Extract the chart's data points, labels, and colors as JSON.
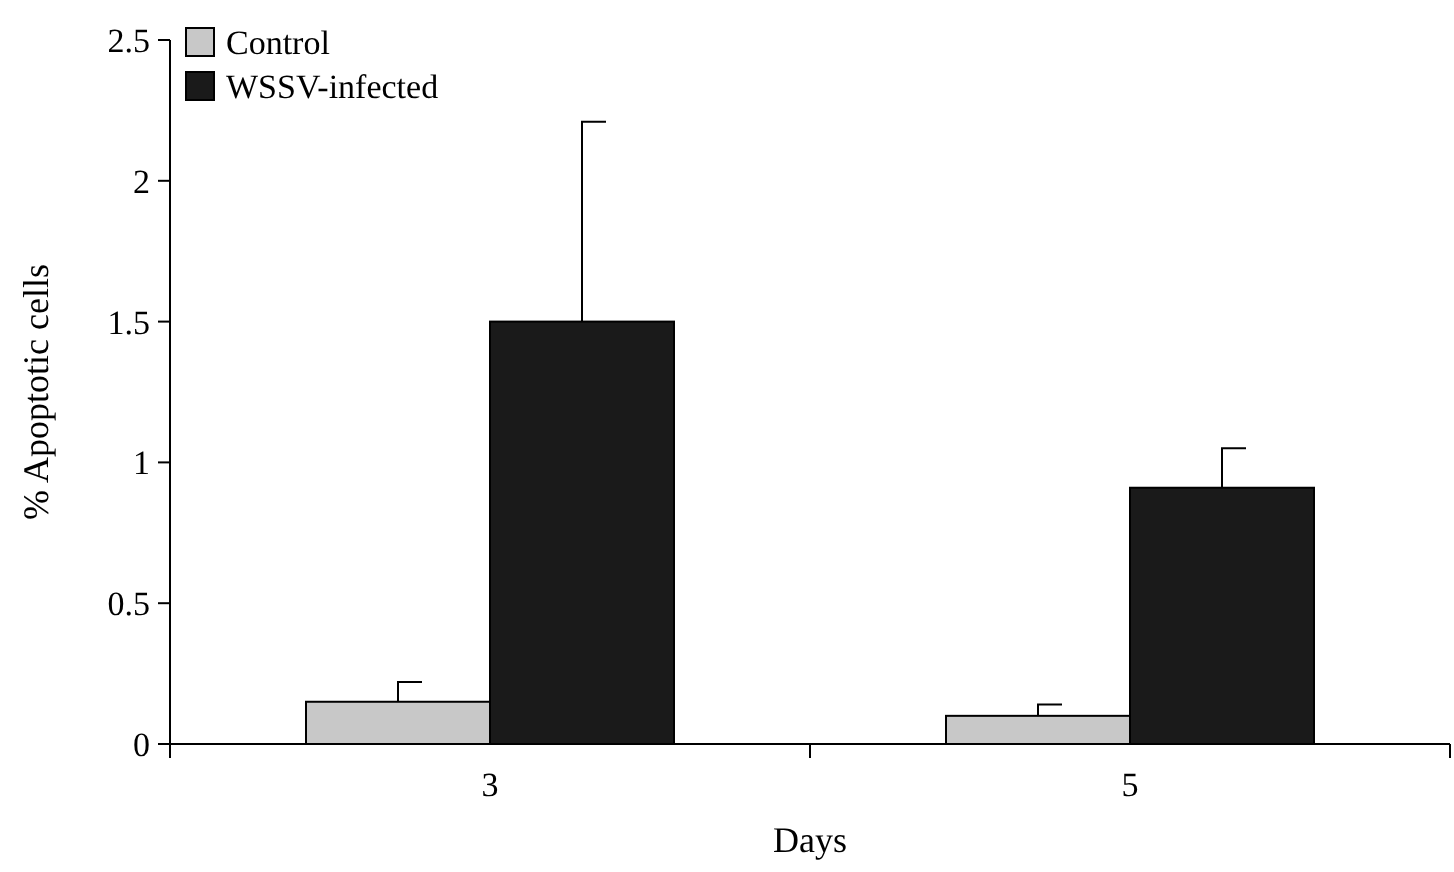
{
  "chart_data": {
    "type": "bar",
    "xlabel": "Days",
    "ylabel": "% Apoptotic cells",
    "categories": [
      "3",
      "5"
    ],
    "series": [
      {
        "name": "Control",
        "color": "#c8c8c8",
        "values": [
          0.15,
          0.1
        ],
        "errors": [
          [
            0.15,
            0.22
          ],
          [
            0.1,
            0.14
          ]
        ]
      },
      {
        "name": "WSSV-infected",
        "color": "#1a1a1a",
        "values": [
          1.5,
          0.91
        ],
        "errors": [
          [
            1.5,
            2.21
          ],
          [
            0.91,
            1.05
          ]
        ]
      }
    ],
    "ylim": [
      0,
      2.5
    ],
    "yticks": [
      0,
      0.5,
      1,
      1.5,
      2,
      2.5
    ],
    "grid": false,
    "legend": "top left"
  }
}
